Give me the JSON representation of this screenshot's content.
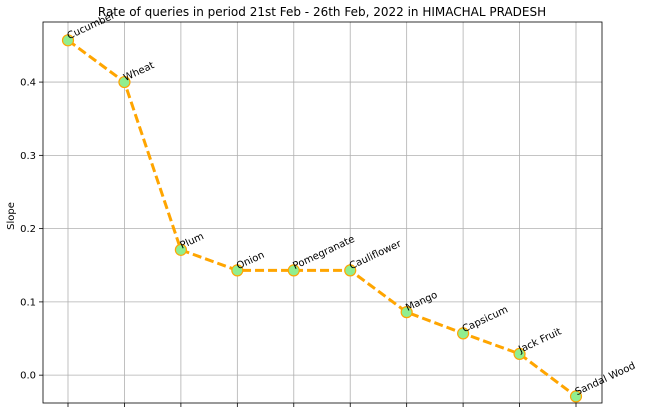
{
  "chart_data": {
    "type": "line",
    "title": "Rate of queries in period 21st Feb - 26th Feb, 2022 in HIMACHAL PRADESH",
    "xlabel": "",
    "ylabel": "Slope",
    "ylim": [
      -0.038,
      0.482
    ],
    "yticks": [
      0.0,
      0.1,
      0.2,
      0.3,
      0.4
    ],
    "ytick_labels": [
      "0.0",
      "0.1",
      "0.2",
      "0.3",
      "0.4"
    ],
    "grid": true,
    "categories": [
      "Cucumber",
      "Wheat",
      "Plum",
      "Onion",
      "Pomegranate",
      "Cauliflower",
      "Mango",
      "Capsicum",
      "Jack Fruit",
      "Sandal Wood"
    ],
    "values": [
      0.457,
      0.4,
      0.171,
      0.143,
      0.143,
      0.143,
      0.086,
      0.057,
      0.029,
      -0.029
    ],
    "colors": {
      "line": "#FFA500",
      "marker_fill": "#90EE90",
      "marker_edge": "#FFA500",
      "grid": "#b0b0b0"
    }
  }
}
